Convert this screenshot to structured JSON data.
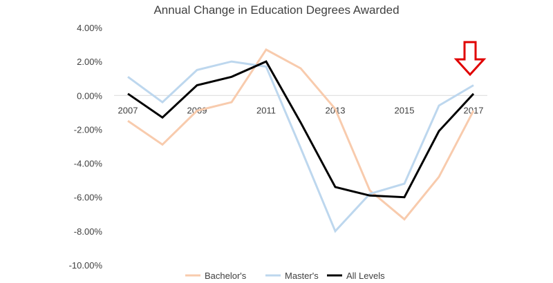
{
  "chart_data": {
    "type": "line",
    "title": "Annual Change in Education Degrees Awarded",
    "xlabel": "",
    "ylabel": "",
    "x": [
      2007,
      2008,
      2009,
      2010,
      2011,
      2012,
      2013,
      2014,
      2015,
      2016,
      2017
    ],
    "x_tick_labels": [
      "2007",
      "2009",
      "2011",
      "2013",
      "2015",
      "2017"
    ],
    "x_tick_values": [
      2007,
      2009,
      2011,
      2013,
      2015,
      2017
    ],
    "ylim": [
      -10,
      4
    ],
    "y_tick_values": [
      4,
      2,
      0,
      -2,
      -4,
      -6,
      -8,
      -10
    ],
    "y_tick_labels": [
      "4.00%",
      "2.00%",
      "0.00%",
      "-2.00%",
      "-4.00%",
      "-6.00%",
      "-8.00%",
      "-10.00%"
    ],
    "grid": false,
    "legend_position": "bottom",
    "series": [
      {
        "name": "Bachelor's",
        "color": "#f8cbad",
        "values": [
          -1.5,
          -2.9,
          -0.9,
          -0.4,
          2.7,
          1.6,
          -0.8,
          -5.6,
          -7.3,
          -4.8,
          -0.9
        ]
      },
      {
        "name": "Master's",
        "color": "#bdd7ee",
        "values": [
          1.1,
          -0.4,
          1.5,
          2.0,
          1.7,
          -3.1,
          -8.0,
          -5.8,
          -5.2,
          -0.6,
          0.6
        ]
      },
      {
        "name": "All Levels",
        "color": "#000000",
        "values": [
          0.1,
          -1.3,
          0.6,
          1.1,
          2.0,
          -1.6,
          -5.4,
          -5.9,
          -6.0,
          -2.1,
          0.1
        ]
      }
    ],
    "annotation": {
      "type": "arrow-down",
      "x": 2017,
      "color": "#e00000"
    }
  }
}
